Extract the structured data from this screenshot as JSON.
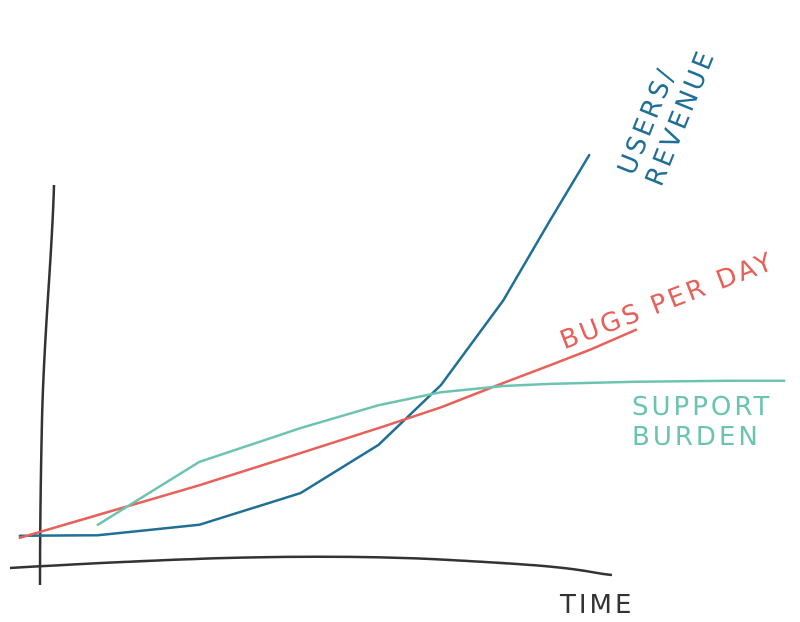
{
  "chart_data": {
    "type": "line",
    "x_label": "TIME",
    "x": [
      1,
      11,
      24,
      37,
      47,
      55,
      63,
      69,
      74,
      80,
      92,
      99
    ],
    "xlim": [
      0,
      100
    ],
    "ylim": [
      0,
      100
    ],
    "series": [
      {
        "name": "USERS/ REVENUE",
        "color": "#1f6f96",
        "values": [
          6.2,
          6.3,
          8.3,
          14.4,
          23.7,
          35.2,
          51.5,
          66.9,
          79.4,
          null,
          null,
          null
        ]
      },
      {
        "name": "BUGS PER DAY",
        "color": "#e8605a",
        "values": [
          5.8,
          10.2,
          15.9,
          22.1,
          26.9,
          30.9,
          35.6,
          39.0,
          41.9,
          45.8,
          null,
          null
        ]
      },
      {
        "name": "SUPPORT BURDEN",
        "color": "#6cc4b0",
        "values": [
          null,
          8.3,
          20.4,
          26.9,
          31.3,
          33.8,
          35.0,
          35.4,
          35.6,
          35.8,
          36.0,
          36.0
        ]
      }
    ]
  }
}
